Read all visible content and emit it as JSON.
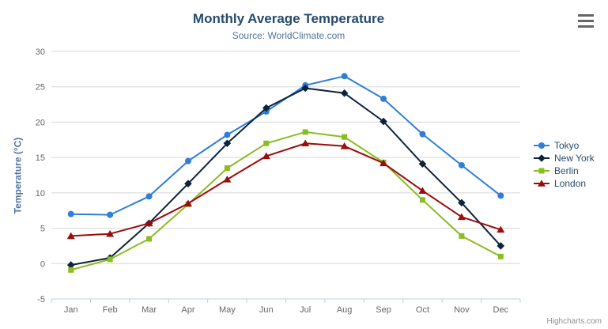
{
  "credits": {
    "label": "Highcharts.com"
  },
  "icons": {
    "context_menu": "hamburger-menu-icon"
  },
  "colors": {
    "background": "#ffffff",
    "title": "#274b6d",
    "subtitle": "#4d759e",
    "axis_title": "#4d759e",
    "tick_label": "#666666",
    "gridline": "#d8d8d8",
    "axis_line": "#c0d0e0",
    "legend_text": "#274b6d",
    "credits": "#909090",
    "menu_icon": "#666666"
  },
  "chart_data": {
    "type": "line",
    "title": "Monthly Average Temperature",
    "subtitle": "Source: WorldClimate.com",
    "categories": [
      "Jan",
      "Feb",
      "Mar",
      "Apr",
      "May",
      "Jun",
      "Jul",
      "Aug",
      "Sep",
      "Oct",
      "Nov",
      "Dec"
    ],
    "series": [
      {
        "name": "Tokyo",
        "color": "#2f7ed8",
        "marker": "circle",
        "values": [
          7.0,
          6.9,
          9.5,
          14.5,
          18.2,
          21.5,
          25.2,
          26.5,
          23.3,
          18.3,
          13.9,
          9.6
        ]
      },
      {
        "name": "New York",
        "color": "#0d233a",
        "marker": "diamond",
        "values": [
          -0.2,
          0.8,
          5.7,
          11.3,
          17.0,
          22.0,
          24.8,
          24.1,
          20.1,
          14.1,
          8.6,
          2.5
        ]
      },
      {
        "name": "Berlin",
        "color": "#8bbc21",
        "marker": "square",
        "values": [
          -0.9,
          0.6,
          3.5,
          8.4,
          13.5,
          17.0,
          18.6,
          17.9,
          14.3,
          9.0,
          3.9,
          1.0
        ]
      },
      {
        "name": "London",
        "color": "#9a0d0d",
        "marker": "triangle",
        "values": [
          3.9,
          4.2,
          5.7,
          8.5,
          11.9,
          15.2,
          17.0,
          16.6,
          14.2,
          10.3,
          6.6,
          4.8
        ]
      }
    ],
    "xlabel": "",
    "ylabel": "Temperature (°C)",
    "ylim": [
      -5,
      30
    ],
    "yticks": [
      -5,
      0,
      5,
      10,
      15,
      20,
      25,
      30
    ],
    "grid": true,
    "legend_position": "right"
  }
}
